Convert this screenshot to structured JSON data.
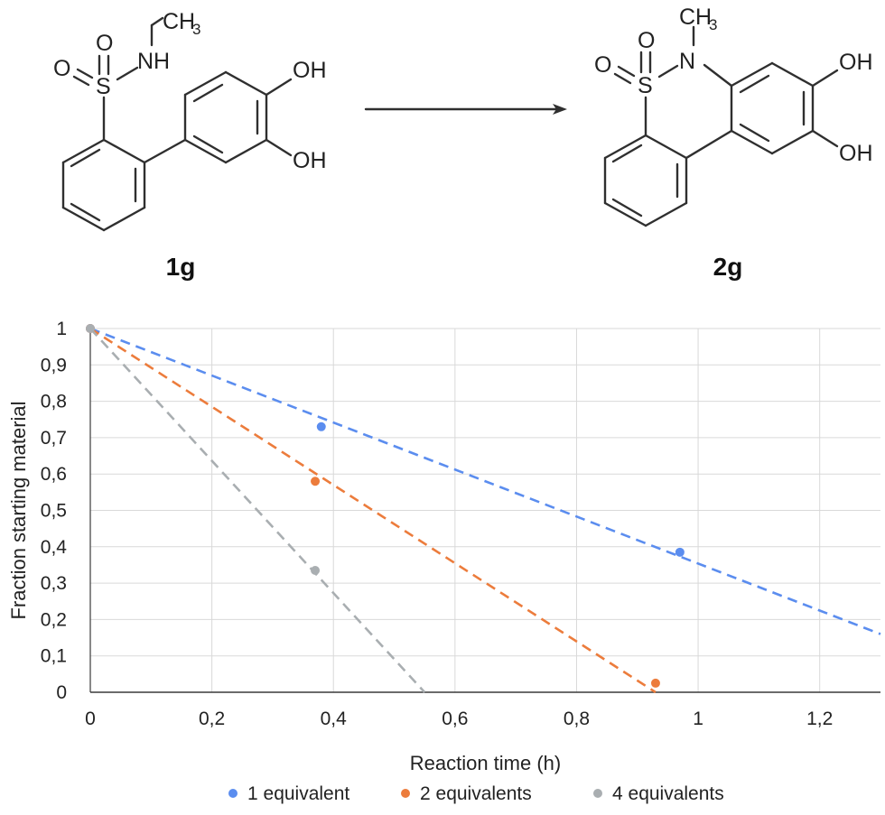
{
  "scheme": {
    "reactant_label": "1g",
    "product_label": "2g",
    "atoms": {
      "sulfur": "S",
      "oxygen": "O",
      "nitrogen_h": "NH",
      "nitrogen": "N",
      "methyl_c": "CH",
      "methyl_sub": "3",
      "hydroxyl": "OH"
    }
  },
  "chart_data": {
    "type": "scatter",
    "title": "",
    "xlabel": "Reaction time (h)",
    "ylabel": "Fraction starting material",
    "xlim": [
      0,
      1.3
    ],
    "ylim": [
      0,
      1
    ],
    "xticks": [
      0,
      0.2,
      0.4,
      0.6,
      0.8,
      1,
      1.2
    ],
    "yticks": [
      0,
      0.1,
      0.2,
      0.3,
      0.4,
      0.5,
      0.6,
      0.7,
      0.8,
      0.9,
      1
    ],
    "xtick_labels": [
      "0",
      "0,2",
      "0,4",
      "0,6",
      "0,8",
      "1",
      "1,2"
    ],
    "ytick_labels": [
      "0",
      "0,1",
      "0,2",
      "0,3",
      "0,4",
      "0,5",
      "0,6",
      "0,7",
      "0,8",
      "0,9",
      "1"
    ],
    "grid": true,
    "legend_position": "bottom",
    "series": [
      {
        "name": "1 equivalent",
        "color": "#5b8def",
        "points": [
          [
            0,
            1
          ],
          [
            0.38,
            0.73
          ],
          [
            0.97,
            0.385
          ]
        ],
        "trendline": {
          "x": [
            0,
            1.3
          ],
          "y": [
            1,
            0.16
          ]
        }
      },
      {
        "name": "2 equivalents",
        "color": "#ec7c3c",
        "points": [
          [
            0,
            1
          ],
          [
            0.37,
            0.58
          ],
          [
            0.93,
            0.025
          ]
        ],
        "trendline": {
          "x": [
            0,
            0.93
          ],
          "y": [
            1,
            0
          ]
        }
      },
      {
        "name": "4 equivalents",
        "color": "#a9aeb1",
        "points": [
          [
            0,
            1
          ],
          [
            0.37,
            0.335
          ]
        ],
        "trendline": {
          "x": [
            0,
            0.55
          ],
          "y": [
            1,
            0
          ]
        }
      }
    ]
  }
}
